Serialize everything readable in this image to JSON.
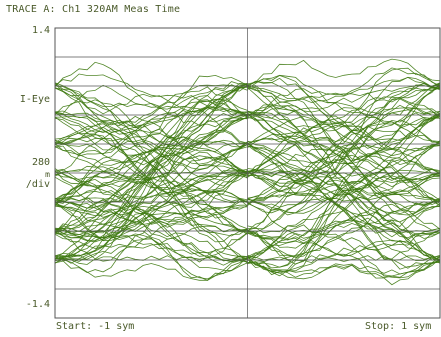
{
  "trace": {
    "title": "TRACE A: Ch1 320AM Meas Time"
  },
  "axis": {
    "y_top_label": "1.4",
    "y_bottom_label": "-1.4",
    "y_mid_label": "I-Eye",
    "scale_value": "280",
    "scale_unit_prefix": "m",
    "scale_unit": "/div",
    "x_start_label": "Start: -1 sym",
    "x_stop_label": "Stop: 1 sym"
  },
  "colors": {
    "trace": "#3f7a12",
    "grid": "#555555",
    "text": "#4a5a2a"
  },
  "chart_data": {
    "type": "line",
    "title": "TRACE A: Ch1 320AM Meas Time",
    "ylabel": "I-Eye",
    "xlabel": "",
    "xlim": [
      -1,
      1
    ],
    "ylim": [
      -1.4,
      1.4
    ],
    "y_scale_per_div": 0.28,
    "x_divisions": 2,
    "y_divisions": 10,
    "grid": true,
    "eye_levels": [
      0.84,
      0.56,
      0.28,
      0.0,
      -0.28,
      -0.56,
      -0.84
    ],
    "symbol_crossings": [
      -1,
      0,
      1
    ]
  }
}
